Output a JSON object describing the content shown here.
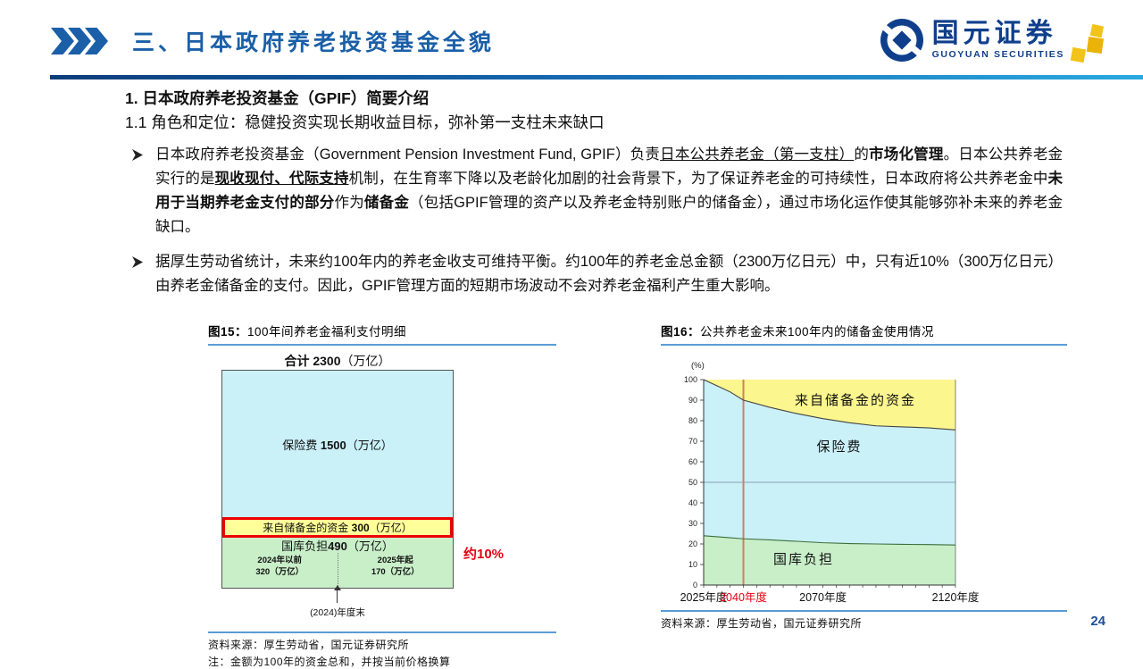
{
  "header": {
    "title": "三、日本政府养老投资基金全貌",
    "logo_cn": "国元证券",
    "logo_en": "GUOYUAN SECURITIES"
  },
  "page_number": "24",
  "colors": {
    "accent_blue": "#1a5fa8",
    "logo_blue": "#0f3f8c",
    "rule_blue": "#5b9bd5",
    "red": "#e60012",
    "area_yellow": "#fbf68e",
    "area_cyan": "#caf0f8",
    "area_green": "#c9efc9",
    "box_yellow": "#ffff99",
    "vline_orange": "#d08060",
    "gold": "#f2c318"
  },
  "content": {
    "h1": "1. 日本政府养老投资基金（GPIF）简要介绍",
    "h2": "1.1 角色和定位：稳健投资实现长期收益目标，弥补第一支柱未来缺口",
    "bullet1_parts": [
      "日本政府养老投资基金（Government Pension Investment Fund, GPIF）负责",
      "日本公共养老金（第一支柱）",
      "的",
      "市场化管理",
      "。日本公共养老金实行的是",
      "现收现付、代际支持",
      "机制，在生育率下降以及老龄化加剧的社会背景下，为了保证养老金的可持续性，日本政府将公共养老金中",
      "未用于当期养老金支付的部分",
      "作为",
      "储备金",
      "（包括GPIF管理的资产以及养老金特别账户的储备金），通过市场化运作使其能够弥补未来的养老金缺口。"
    ],
    "bullet2": "据厚生劳动省统计，未来约100年内的养老金收支可维持平衡。约100年的养老金总金额（2300万亿日元）中，只有近10%（300万亿日元）由养老金储备金的支付。因此，GPIF管理方面的短期市场波动不会对养老金福利产生重大影响。"
  },
  "fig15": {
    "caption_no": "图15：",
    "caption": "100年间养老金福利支付明细",
    "total_pre": "合计 ",
    "total_num": "2300",
    "total_post": "（万亿）",
    "insurance_pre": "保险费 ",
    "insurance_num": "1500",
    "insurance_post": "（万亿）",
    "reserve_pre": "来自储备金的资金 ",
    "reserve_num": "300",
    "reserve_post": "（万亿）",
    "reserve_note": "约10%",
    "treasury_pre": "国库负担",
    "treasury_num": "490",
    "treasury_post": "（万亿）",
    "treasury_left_1": "2024年以前",
    "treasury_left_2": "320（万亿）",
    "treasury_right_1": "2025年起",
    "treasury_right_2": "170（万亿）",
    "arrow_label": "(2024)年度末",
    "source": "资料来源：厚生劳动省，国元证券研究所",
    "note": "注：金额为100年的资金总和，并按当前价格换算"
  },
  "fig16": {
    "caption_no": "图16：",
    "caption": "公共养老金未来100年内的储备金使用情况",
    "source": "资料来源：厚生劳动省，国元证券研究所"
  },
  "chart_data": [
    {
      "type": "bar",
      "title": "图15：100年间养老金福利支付明细",
      "total": {
        "label": "合计",
        "value": 2300,
        "unit": "万亿"
      },
      "segments": [
        {
          "label": "保险费",
          "value": 1500
        },
        {
          "label": "来自储备金的资金",
          "value": 300,
          "annotation": "约10%"
        },
        {
          "label": "国库负担",
          "value": 490,
          "breakdown": [
            {
              "label": "2024年以前",
              "value": 320
            },
            {
              "label": "2025年起",
              "value": 170
            }
          ]
        }
      ],
      "footnote": "金额为100年的资金总和，并按当前价格换算",
      "marker": "(2024)年度末"
    },
    {
      "type": "area",
      "title": "图16：公共养老金未来100年内的储备金使用情况",
      "ylabel": "(%)",
      "ylim": [
        0,
        100
      ],
      "x": [
        2025,
        2030,
        2035,
        2040,
        2050,
        2060,
        2070,
        2080,
        2090,
        2100,
        2110,
        2120
      ],
      "series": [
        {
          "name": "国库负担",
          "values": [
            24,
            23.5,
            23,
            22.5,
            22,
            21.3,
            20.6,
            20.2,
            20,
            19.8,
            19.7,
            19.5
          ]
        },
        {
          "name": "保险费",
          "values": [
            76,
            73.5,
            71,
            67.5,
            64.5,
            62.2,
            60.4,
            58.8,
            57.5,
            57.2,
            56.8,
            56
          ]
        },
        {
          "name": "来自储备金的资金",
          "values": [
            0,
            3,
            6,
            10,
            13.5,
            16.5,
            19,
            21,
            22.5,
            23,
            23.5,
            24.5
          ]
        }
      ],
      "gridline_y": 50,
      "vline_x": 2040,
      "x_tick_step": 5,
      "x_labels": [
        {
          "year": 2025,
          "text": "2025年度",
          "red": false
        },
        {
          "year": 2040,
          "text": "2040年度",
          "red": true
        },
        {
          "year": 2070,
          "text": "2070年度",
          "red": false
        },
        {
          "year": 2120,
          "text": "2120年度",
          "red": false
        }
      ],
      "legend_position": "inside"
    }
  ]
}
